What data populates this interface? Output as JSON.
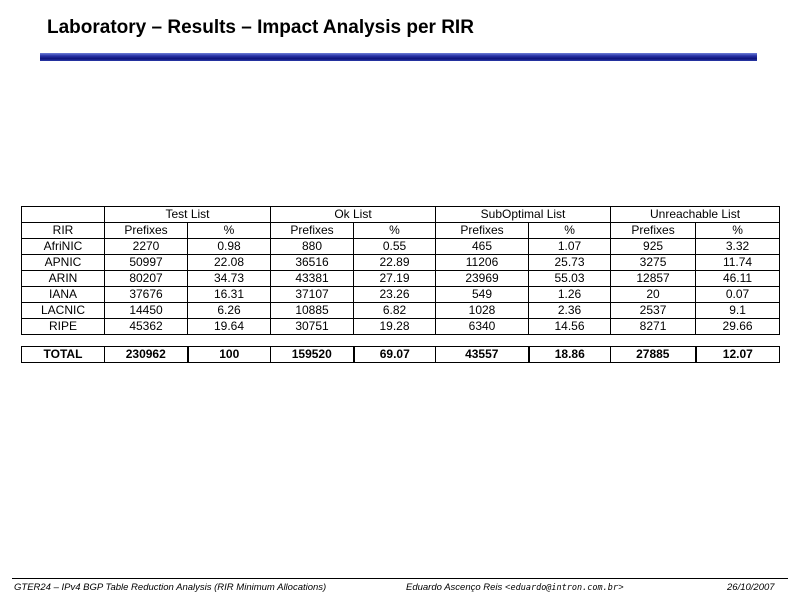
{
  "title": "Laboratory – Results – Impact Analysis per RIR",
  "table": {
    "group_headers": [
      "Test List",
      "Ok List",
      "SubOptimal List",
      "Unreachable List"
    ],
    "rir_header": "RIR",
    "sub_headers": [
      "Prefixes",
      "%",
      "Prefixes",
      "%",
      "Prefixes",
      "%",
      "Prefixes",
      "%"
    ],
    "rows": [
      [
        "AfriNIC",
        "2270",
        "0.98",
        "880",
        "0.55",
        "465",
        "1.07",
        "925",
        "3.32"
      ],
      [
        "APNIC",
        "50997",
        "22.08",
        "36516",
        "22.89",
        "11206",
        "25.73",
        "3275",
        "11.74"
      ],
      [
        "ARIN",
        "80207",
        "34.73",
        "43381",
        "27.19",
        "23969",
        "55.03",
        "12857",
        "46.11"
      ],
      [
        "IANA",
        "37676",
        "16.31",
        "37107",
        "23.26",
        "549",
        "1.26",
        "20",
        "0.07"
      ],
      [
        "LACNIC",
        "14450",
        "6.26",
        "10885",
        "6.82",
        "1028",
        "2.36",
        "2537",
        "9.1"
      ],
      [
        "RIPE",
        "45362",
        "19.64",
        "30751",
        "19.28",
        "6340",
        "14.56",
        "8271",
        "29.66"
      ]
    ],
    "total": [
      "TOTAL",
      "230962",
      "100",
      "159520",
      "69.07",
      "43557",
      "18.86",
      "27885",
      "12.07"
    ]
  },
  "footer": {
    "left": "GTER24 – IPv4 BGP Table Reduction Analysis (RIR Minimum Allocations)",
    "author": "Eduardo Ascenço Reis <",
    "email": "eduardo@intron.com.br",
    "email_close": ">",
    "date": "26/10/2007"
  }
}
